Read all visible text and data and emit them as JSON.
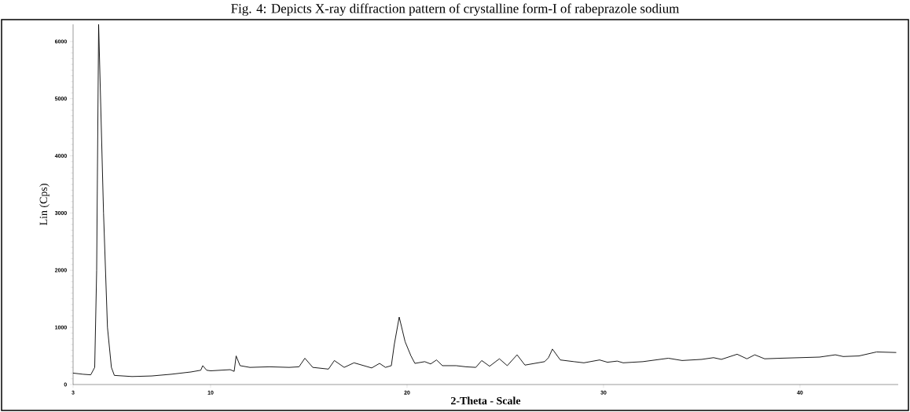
{
  "chart_data": {
    "type": "line",
    "title": "Fig. 4: Depicts X-ray diffraction pattern of crystalline form-I of rabeprazole sodium",
    "xlabel": "2-Theta - Scale",
    "ylabel": "Lin (Cps)",
    "x": [
      3.0,
      3.5,
      3.9,
      4.1,
      4.2,
      4.3,
      4.55,
      4.75,
      4.95,
      5.1,
      6,
      7,
      8,
      9,
      9.5,
      9.6,
      9.8,
      10,
      11,
      11.2,
      11.3,
      11.5,
      12,
      13,
      14,
      14.5,
      14.8,
      15.2,
      16,
      16.3,
      16.8,
      17.3,
      17.8,
      18.2,
      18.6,
      18.9,
      19.2,
      19.35,
      19.6,
      19.9,
      20.2,
      20.4,
      20.9,
      21.2,
      21.5,
      21.8,
      22.5,
      23,
      23.5,
      23.8,
      24.2,
      24.7,
      25.1,
      25.6,
      26.0,
      26.5,
      27,
      27.2,
      27.4,
      27.8,
      28.5,
      29.0,
      29.8,
      30.2,
      30.7,
      31,
      32,
      33.3,
      34,
      35,
      35.6,
      36,
      36.8,
      37.3,
      37.7,
      38.2,
      39,
      40,
      41,
      41.8,
      42.2,
      43,
      43.9,
      44.9
    ],
    "values": [
      200,
      180,
      170,
      300,
      2000,
      6300,
      3000,
      1000,
      300,
      160,
      140,
      150,
      180,
      220,
      250,
      330,
      250,
      240,
      260,
      230,
      500,
      330,
      300,
      310,
      300,
      310,
      460,
      300,
      270,
      420,
      300,
      380,
      330,
      290,
      370,
      300,
      330,
      700,
      1180,
      750,
      500,
      370,
      400,
      360,
      430,
      330,
      330,
      310,
      300,
      420,
      320,
      450,
      330,
      520,
      340,
      370,
      400,
      470,
      620,
      430,
      400,
      380,
      430,
      390,
      410,
      380,
      400,
      460,
      420,
      440,
      470,
      440,
      530,
      450,
      520,
      450,
      460,
      470,
      480,
      520,
      490,
      500,
      570,
      560
    ],
    "color": "#000000",
    "xlim": [
      3,
      45
    ],
    "ylim": [
      0,
      6300
    ],
    "xticks": [
      3,
      10,
      20,
      30,
      40
    ],
    "yticks": [
      0,
      1000,
      2000,
      3000,
      4000,
      5000,
      6000
    ]
  }
}
